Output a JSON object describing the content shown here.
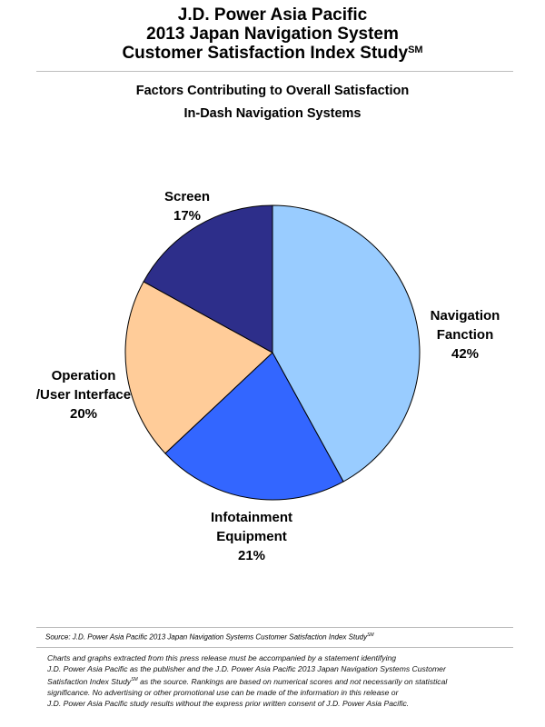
{
  "header": {
    "title_line1": "J.D. Power Asia Pacific",
    "title_line2": "2013 Japan Navigation System",
    "title_line3": "Customer Satisfaction Index Study",
    "title_superscript": "SM"
  },
  "chart_data": {
    "type": "pie",
    "title": "Factors Contributing to Overall Satisfaction",
    "subtitle": "In-Dash Navigation Systems",
    "slices": [
      {
        "label_lines": [
          "Navigation",
          "Fanction"
        ],
        "value": 42,
        "value_label": "42%",
        "color": "#99ccff"
      },
      {
        "label_lines": [
          "Infotainment",
          "Equipment"
        ],
        "value": 21,
        "value_label": "21%",
        "color": "#3366ff"
      },
      {
        "label_lines": [
          "Operation",
          "/User Interface"
        ],
        "value": 20,
        "value_label": "20%",
        "color": "#ffcc99"
      },
      {
        "label_lines": [
          "Screen"
        ],
        "value": 17,
        "value_label": "17%",
        "color": "#2d2e8a"
      }
    ],
    "legend": "none"
  },
  "footer": {
    "source_text": "Source: J.D. Power Asia Pacific 2013 Japan Navigation Systems Customer Satisfaction Index Study",
    "source_superscript": "SM",
    "disclaimer_line1": "Charts and graphs extracted from this press release must be accompanied by a statement identifying",
    "disclaimer_line2": "J.D. Power Asia Pacific as the publisher and the J.D. Power Asia Pacific 2013 Japan Navigation Systems Customer",
    "disclaimer_line3a": "Satisfaction Index Study",
    "disclaimer_line3_sup": "SM",
    "disclaimer_line3b": " as the source. Rankings are based on numerical scores and not necessarily on statistical",
    "disclaimer_line4": "significance. No advertising or other promotional use can be made of the information in this release or",
    "disclaimer_line5": "J.D. Power Asia Pacific study results without the express prior written consent of J.D. Power Asia Pacific."
  }
}
